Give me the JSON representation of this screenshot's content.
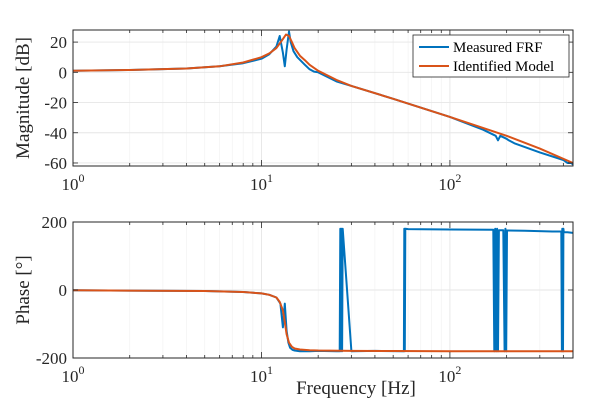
{
  "figure": {
    "legend": [
      "Measured FRF",
      "Identified Model"
    ],
    "colors": {
      "measured": "#0072BD",
      "model": "#D95319",
      "axis": "#262626",
      "grid": "#e6e6e6",
      "minor_grid": "#f2f2f2"
    }
  },
  "chart_data": [
    {
      "type": "line",
      "name": "magnitude",
      "ylabel": "Magnitude [dB]",
      "xlabel": "",
      "xscale": "log",
      "xlim": [
        1,
        450
      ],
      "ylim": [
        -62,
        28
      ],
      "yticks": [
        20,
        0,
        -20,
        -40,
        -60
      ],
      "ytick_labels": [
        "20",
        "0",
        "-20",
        "-40",
        "-60"
      ],
      "xtick_labels": [
        {
          "base": "10",
          "exp": "0"
        },
        {
          "base": "10",
          "exp": "1"
        },
        {
          "base": "10",
          "exp": "2"
        }
      ],
      "grid": true,
      "legend_position": "top-right",
      "series": [
        {
          "name": "Measured FRF",
          "x": [
            1,
            2,
            4,
            6,
            8,
            10,
            11,
            12,
            12.5,
            13,
            13.3,
            13.6,
            14,
            14.3,
            14.8,
            15.5,
            17,
            18,
            19,
            20,
            25,
            30,
            50,
            100,
            150,
            175,
            180,
            185,
            200,
            205,
            220,
            300,
            400,
            420,
            440,
            450
          ],
          "y": [
            1,
            1.5,
            2.5,
            4,
            6,
            9,
            12,
            17,
            24,
            13,
            4,
            15,
            27,
            20,
            14,
            10,
            5,
            2,
            0.5,
            0,
            -6,
            -9,
            -17.5,
            -29.5,
            -38,
            -42,
            -45,
            -42,
            -44,
            -45,
            -47,
            -53,
            -58,
            -60,
            -60,
            -61
          ]
        },
        {
          "name": "Identified Model",
          "x": [
            1,
            2,
            4,
            6,
            8,
            10,
            11,
            12,
            13,
            13.5,
            14,
            14.5,
            15,
            16,
            17,
            18,
            20,
            25,
            30,
            50,
            100,
            200,
            300,
            450
          ],
          "y": [
            1,
            1.5,
            2.5,
            4,
            6.5,
            10,
            12.5,
            16,
            22,
            25,
            24,
            20,
            16,
            11,
            8,
            5,
            1,
            -5,
            -9,
            -17.5,
            -29.5,
            -42,
            -50.5,
            -60
          ]
        }
      ]
    },
    {
      "type": "line",
      "name": "phase",
      "ylabel": "Phase [°]",
      "xlabel": "Frequency [Hz]",
      "xscale": "log",
      "xlim": [
        1,
        450
      ],
      "ylim": [
        -200,
        200
      ],
      "yticks": [
        200,
        0,
        -200
      ],
      "ytick_labels": [
        "200",
        "0",
        "-200"
      ],
      "xtick_labels": [
        {
          "base": "10",
          "exp": "0"
        },
        {
          "base": "10",
          "exp": "1"
        },
        {
          "base": "10",
          "exp": "2"
        }
      ],
      "grid": true,
      "series": [
        {
          "name": "Measured FRF",
          "x": [
            1,
            5,
            8,
            10,
            11,
            12,
            12.6,
            13,
            13.3,
            13.6,
            13.9,
            14.2,
            14.6,
            15,
            16,
            18,
            20,
            25,
            26,
            26.2,
            26.4,
            26.6,
            26.8,
            27,
            30,
            40,
            57,
            57.3,
            57.6,
            58,
            60,
            100,
            170,
            172,
            174,
            176,
            178,
            180,
            182,
            192,
            195,
            197,
            199,
            201,
            200,
            250,
            350,
            390,
            393,
            395,
            398,
            400,
            402,
            420,
            450
          ],
          "y": [
            -1,
            -3,
            -6,
            -10,
            -14,
            -22,
            -40,
            -110,
            -40,
            -120,
            -155,
            -170,
            -176,
            -178,
            -180,
            -180,
            -179,
            -180,
            -180,
            180,
            -180,
            180,
            -180,
            180,
            -180,
            -179,
            -180,
            180,
            -180,
            180,
            179,
            178,
            177,
            -180,
            180,
            -180,
            180,
            -180,
            176,
            176,
            -180,
            180,
            -180,
            175,
            175,
            174,
            172,
            172,
            -180,
            180,
            -180,
            180,
            170,
            170,
            168
          ]
        },
        {
          "name": "Identified Model",
          "x": [
            1,
            5,
            8,
            10,
            11,
            12,
            12.5,
            13,
            13.3,
            13.6,
            14,
            14.5,
            15,
            16,
            18,
            20,
            30,
            50,
            100,
            200,
            450
          ],
          "y": [
            -1,
            -3,
            -6,
            -10,
            -14,
            -22,
            -35,
            -60,
            -95,
            -130,
            -155,
            -167,
            -172,
            -175,
            -177,
            -178,
            -179,
            -179.5,
            -180,
            -180,
            -180
          ]
        }
      ]
    }
  ]
}
